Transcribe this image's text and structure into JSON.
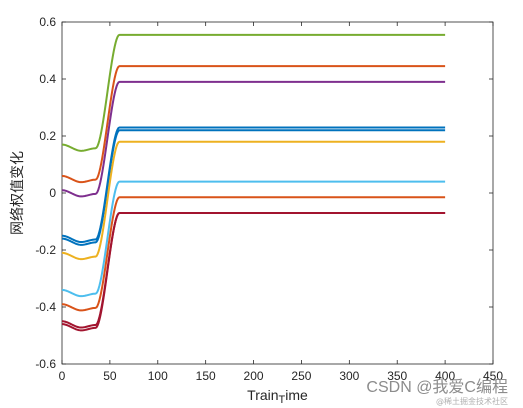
{
  "chart_data": {
    "type": "line",
    "xlabel": "Train_Time",
    "ylabel": "网络权值变化",
    "xlim": [
      0,
      450
    ],
    "ylim": [
      -0.6,
      0.6
    ],
    "xticks": [
      0,
      50,
      100,
      150,
      200,
      250,
      300,
      350,
      400,
      450
    ],
    "yticks": [
      -0.6,
      -0.4,
      -0.2,
      0,
      0.2,
      0.4,
      0.6
    ],
    "ytick_labels": [
      "-0.6",
      "-0.4",
      "-0.2",
      "0",
      "0.2",
      "0.4",
      "0.6"
    ],
    "grid": false,
    "box": true,
    "x_end": 400,
    "transition": {
      "start_x": 35,
      "dip_x": 20,
      "settle_x": 60
    },
    "series": [
      {
        "color": "#77AC30",
        "initial": 0.17,
        "final": 0.555
      },
      {
        "color": "#D95319",
        "initial": 0.06,
        "final": 0.445
      },
      {
        "color": "#7E2F8E",
        "initial": 0.01,
        "final": 0.39
      },
      {
        "color": "#0072BD",
        "initial": -0.15,
        "final": 0.23
      },
      {
        "color": "#0072BD",
        "initial": -0.16,
        "final": 0.22
      },
      {
        "color": "#EDB120",
        "initial": -0.21,
        "final": 0.18
      },
      {
        "color": "#4DBEEE",
        "initial": -0.34,
        "final": 0.04
      },
      {
        "color": "#D95319",
        "initial": -0.39,
        "final": -0.015
      },
      {
        "color": "#A2142F",
        "initial": -0.45,
        "final": -0.07
      },
      {
        "color": "#A2142F",
        "initial": -0.46,
        "final": -0.07
      }
    ]
  },
  "watermark": {
    "main": "CSDN @我爱C编程",
    "sub": "@稀土掘金技术社区"
  }
}
